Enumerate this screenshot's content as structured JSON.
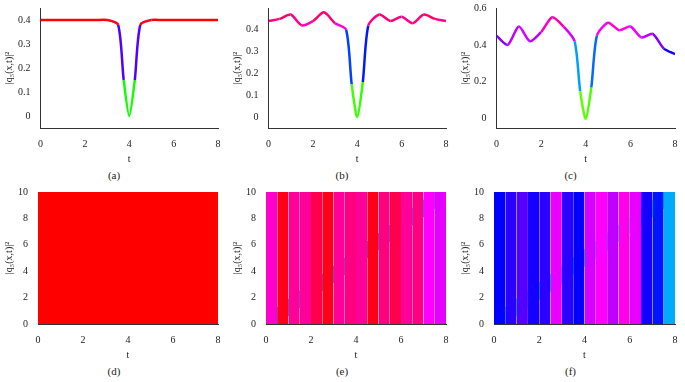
{
  "chart_data": [
    {
      "type": "line",
      "caption": "(a)",
      "x_label": "t",
      "y_label": "|q₅(x,t)|²",
      "grid": false,
      "x": [
        0,
        0.5,
        1,
        1.5,
        2,
        2.5,
        3,
        3.5,
        3.75,
        4,
        4.25,
        4.5,
        5,
        5.5,
        6,
        6.5,
        7,
        7.5,
        8
      ],
      "values": [
        0.4,
        0.4,
        0.4,
        0.4,
        0.4,
        0.4,
        0.4,
        0.38,
        0.15,
        0.0,
        0.15,
        0.38,
        0.4,
        0.4,
        0.4,
        0.4,
        0.4,
        0.4,
        0.4
      ],
      "color_range": [
        0,
        0.4
      ],
      "xlim": [
        0,
        8
      ],
      "xticks": [
        0,
        2,
        4,
        6,
        8
      ],
      "ylim": [
        -0.05,
        0.45
      ],
      "yticks": [
        0,
        0.1,
        0.2,
        0.3,
        0.4
      ]
    },
    {
      "type": "line",
      "caption": "(b)",
      "x_label": "t",
      "y_label": "|q₅(x,t)|²",
      "grid": false,
      "x": [
        0,
        0.5,
        1,
        1.5,
        2,
        2.5,
        3,
        3.5,
        3.75,
        4,
        4.25,
        4.5,
        5,
        5.5,
        6,
        6.5,
        7,
        7.5,
        8
      ],
      "values": [
        0.44,
        0.45,
        0.47,
        0.42,
        0.44,
        0.48,
        0.43,
        0.4,
        0.15,
        0.0,
        0.16,
        0.42,
        0.47,
        0.44,
        0.46,
        0.43,
        0.47,
        0.45,
        0.44
      ],
      "color_range": [
        0,
        0.5
      ],
      "xlim": [
        0,
        8
      ],
      "xticks": [
        0,
        2,
        4,
        6,
        8
      ],
      "ylim": [
        -0.05,
        0.5
      ],
      "yticks": [
        0,
        0.1,
        0.2,
        0.3,
        0.4
      ]
    },
    {
      "type": "line",
      "caption": "(c)",
      "x_label": "t",
      "y_label": "|q₅(x,t)|²",
      "grid": false,
      "x": [
        0,
        0.5,
        1,
        1.5,
        2,
        2.5,
        3,
        3.5,
        3.75,
        4,
        4.25,
        4.5,
        5,
        5.5,
        6,
        6.5,
        7,
        7.5,
        8
      ],
      "values": [
        0.45,
        0.4,
        0.5,
        0.42,
        0.47,
        0.55,
        0.5,
        0.42,
        0.15,
        0.0,
        0.17,
        0.45,
        0.52,
        0.48,
        0.5,
        0.44,
        0.46,
        0.38,
        0.35
      ],
      "color_range": [
        0,
        0.6
      ],
      "xlim": [
        0,
        8
      ],
      "xticks": [
        0,
        2,
        4,
        6,
        8
      ],
      "ylim": [
        -0.05,
        0.6
      ],
      "yticks": [
        0,
        0.2,
        0.4,
        0.6
      ]
    },
    {
      "type": "heatmap",
      "caption": "(d)",
      "x_label": "t",
      "y_label": "|q₅(x,t)|²",
      "grid": false,
      "t_edges": [
        0,
        8
      ],
      "background": [
        0.4
      ],
      "path": {
        "t": [
          0,
          8
        ],
        "x": [
          0,
          10
        ]
      },
      "band_values": [
        0.24,
        0.12,
        0.03
      ],
      "color_range": [
        0,
        0.4
      ],
      "xlim": [
        0,
        8
      ],
      "xticks": [
        0,
        2,
        4,
        6,
        8
      ],
      "ylim": [
        0,
        10
      ],
      "yticks": [
        0,
        2,
        4,
        6,
        8,
        10
      ]
    },
    {
      "type": "heatmap",
      "caption": "(e)",
      "x_label": "t",
      "y_label": "|q₅(x,t)|²",
      "grid": false,
      "t_edges": [
        0,
        0.5,
        1,
        1.5,
        2,
        2.5,
        3,
        3.5,
        4,
        4.5,
        5,
        5.5,
        6,
        6.5,
        7,
        7.5,
        8
      ],
      "background": [
        0.42,
        0.49,
        0.44,
        0.44,
        0.47,
        0.49,
        0.44,
        0.45,
        0.44,
        0.49,
        0.45,
        0.47,
        0.44,
        0.45,
        0.4,
        0.39
      ],
      "path": {
        "t": [
          0,
          8
        ],
        "x": [
          0,
          10
        ]
      },
      "band_values": [
        0.24,
        0.12,
        0.03
      ],
      "color_range": [
        0,
        0.5
      ],
      "xlim": [
        0,
        8
      ],
      "xticks": [
        0,
        2,
        4,
        6,
        8
      ],
      "ylim": [
        0,
        10
      ],
      "yticks": [
        0,
        2,
        4,
        6,
        8,
        10
      ]
    },
    {
      "type": "heatmap",
      "caption": "(f)",
      "x_label": "t",
      "y_label": "|q₅(x,t)|²",
      "grid": false,
      "t_edges": [
        0,
        0.5,
        1,
        1.5,
        2,
        2.5,
        3,
        3.5,
        4,
        4.5,
        5,
        5.5,
        6,
        6.5,
        7,
        7.5,
        8
      ],
      "background": [
        0.36,
        0.38,
        0.4,
        0.37,
        0.38,
        0.47,
        0.38,
        0.36,
        0.46,
        0.48,
        0.45,
        0.49,
        0.47,
        0.37,
        0.35,
        0.28
      ],
      "path": {
        "t": [
          0,
          8
        ],
        "x": [
          0,
          10
        ]
      },
      "band_values": [
        0.24,
        0.12,
        0.03
      ],
      "color_range": [
        0,
        0.6
      ],
      "xlim": [
        0,
        8
      ],
      "xticks": [
        0,
        2,
        4,
        6,
        8
      ],
      "ylim": [
        0,
        10
      ],
      "yticks": [
        0,
        2,
        4,
        6,
        8,
        10
      ]
    }
  ]
}
